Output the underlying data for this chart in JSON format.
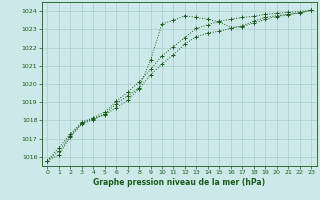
{
  "background_color": "#cce8e8",
  "grid_color": "#aacccc",
  "line_color": "#1a5c1a",
  "xlabel": "Graphe pression niveau de la mer (hPa)",
  "xlim": [
    -0.5,
    23.5
  ],
  "ylim": [
    1015.5,
    1024.5
  ],
  "yticks": [
    1016,
    1017,
    1018,
    1019,
    1020,
    1021,
    1022,
    1023,
    1024
  ],
  "xticks": [
    0,
    1,
    2,
    3,
    4,
    5,
    6,
    7,
    8,
    9,
    10,
    11,
    12,
    13,
    14,
    15,
    16,
    17,
    18,
    19,
    20,
    21,
    22,
    23
  ],
  "series": [
    [
      1015.8,
      1016.1,
      1017.1,
      1017.8,
      1018.05,
      1018.35,
      1018.9,
      1019.35,
      1019.8,
      1021.3,
      1023.3,
      1023.5,
      1023.75,
      1023.65,
      1023.55,
      1023.4,
      1023.1,
      1023.15,
      1023.35,
      1023.55,
      1023.7,
      1023.8,
      1023.9,
      1024.05
    ],
    [
      1015.8,
      1016.3,
      1017.15,
      1017.85,
      1018.1,
      1018.3,
      1018.7,
      1019.1,
      1019.75,
      1020.5,
      1021.1,
      1021.6,
      1022.2,
      1022.6,
      1022.8,
      1022.9,
      1023.05,
      1023.2,
      1023.45,
      1023.65,
      1023.75,
      1023.82,
      1023.9,
      1024.05
    ],
    [
      1015.8,
      1016.5,
      1017.25,
      1017.9,
      1018.15,
      1018.45,
      1019.05,
      1019.55,
      1020.1,
      1020.8,
      1021.55,
      1022.05,
      1022.55,
      1023.05,
      1023.25,
      1023.45,
      1023.55,
      1023.65,
      1023.72,
      1023.82,
      1023.88,
      1023.93,
      1023.97,
      1024.05
    ]
  ]
}
